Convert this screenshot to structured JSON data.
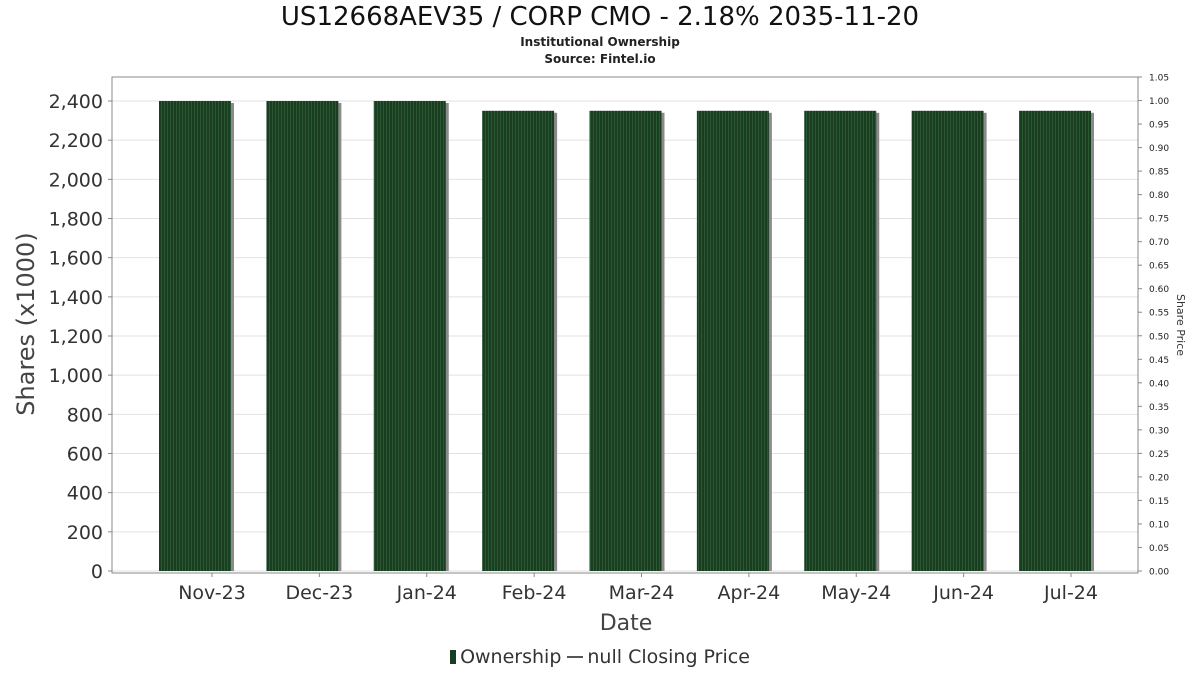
{
  "header": {
    "title": "US12668AEV35 / CORP CMO - 2.18% 2035-11-20",
    "subtitle": "Institutional Ownership",
    "source": "Source: Fintel.io"
  },
  "legend": {
    "ownership": "Ownership",
    "closing_price": "null Closing Price"
  },
  "colors": {
    "bar": "#1a3d22",
    "bar_shadow": "#8a8a8a",
    "grid": "#e2e2e2"
  },
  "chart_data": {
    "type": "bar",
    "title": "US12668AEV35 / CORP CMO - 2.18% 2035-11-20",
    "subtitle": "Institutional Ownership",
    "xlabel": "Date",
    "ylabel": "Shares (x1000)",
    "y2label": "Share Price",
    "categories": [
      "Nov-23",
      "Dec-23",
      "Jan-24",
      "Feb-24",
      "Mar-24",
      "Apr-24",
      "May-24",
      "Jun-24",
      "Jul-24"
    ],
    "series": [
      {
        "name": "Ownership",
        "values": [
          2400,
          2400,
          2400,
          2350,
          2350,
          2350,
          2350,
          2350,
          2350
        ]
      }
    ],
    "ylim": [
      0,
      2520
    ],
    "yticks": [
      0,
      200,
      400,
      600,
      800,
      1000,
      1200,
      1400,
      1600,
      1800,
      2000,
      2200,
      2400
    ],
    "ytick_labels": [
      "0",
      "200",
      "400",
      "600",
      "800",
      "1,000",
      "1,200",
      "1,400",
      "1,600",
      "1,800",
      "2,000",
      "2,200",
      "2,400"
    ],
    "y2lim": [
      0,
      1.05
    ],
    "y2ticks": [
      "0.00",
      "0.05",
      "0.10",
      "0.15",
      "0.20",
      "0.25",
      "0.30",
      "0.35",
      "0.40",
      "0.45",
      "0.50",
      "0.55",
      "0.60",
      "0.65",
      "0.70",
      "0.75",
      "0.80",
      "0.85",
      "0.90",
      "0.95",
      "1.00",
      "1.05"
    ],
    "grid": true,
    "legend_position": "bottom"
  }
}
